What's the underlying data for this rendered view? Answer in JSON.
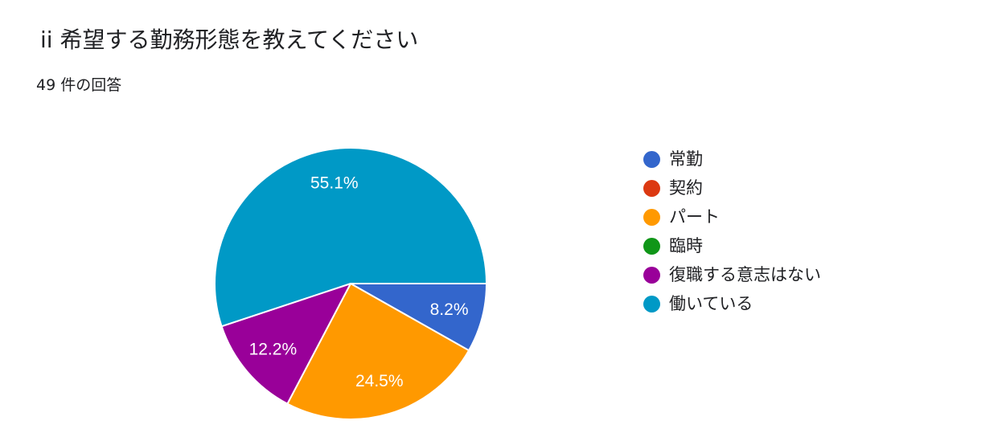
{
  "header": {
    "title": "ii 希望する勤務形態を教えてください",
    "response_count": "49 件の回答"
  },
  "chart_data": {
    "type": "pie",
    "categories": [
      "常勤",
      "契約",
      "パート",
      "臨時",
      "復職する意志はない",
      "働いている"
    ],
    "values": [
      8.2,
      0,
      24.5,
      0,
      12.2,
      55.1
    ],
    "labels": [
      "8.2%",
      "",
      "24.5%",
      "",
      "12.2%",
      "55.1%"
    ],
    "colors": [
      "#3366cc",
      "#dc3912",
      "#ff9900",
      "#109618",
      "#990099",
      "#0099c6"
    ],
    "legend_position": "right"
  }
}
